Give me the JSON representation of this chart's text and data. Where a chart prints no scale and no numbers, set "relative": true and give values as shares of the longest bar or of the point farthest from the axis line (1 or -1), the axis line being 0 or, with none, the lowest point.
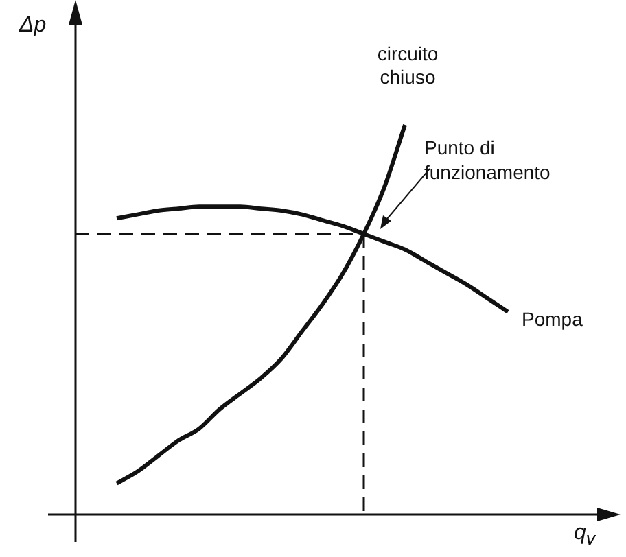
{
  "chart_data": {
    "type": "line",
    "relative": true,
    "xlabel": "q$_{v}$",
    "ylabel": "Δp",
    "legend": false,
    "marker": "none",
    "categories": [
      null,
      null,
      null,
      null,
      null,
      null,
      null,
      null,
      null,
      null,
      null,
      null,
      null,
      null,
      null,
      null,
      null,
      null,
      null,
      null,
      null,
      null,
      null,
      null,
      null,
      null
    ],
    "series": [
      {
        "name": "circuito chiuso",
        "color": "#111111",
        "values": [
          null,
          null,
          0.08,
          0.11,
          0.15,
          0.19,
          0.22,
          0.27,
          0.31,
          0.35,
          0.4,
          0.47,
          0.54,
          0.62,
          0.72,
          0.84,
          1,
          null,
          null,
          null,
          null,
          null,
          null,
          null,
          null,
          null
        ]
      },
      {
        "name": "Pompa",
        "color": "#111111",
        "values": [
          null,
          null,
          0.76,
          0.77,
          0.78,
          0.785,
          0.79,
          0.79,
          0.79,
          0.785,
          0.78,
          0.77,
          0.755,
          0.74,
          0.72,
          0.7,
          0.68,
          0.65,
          0.62,
          0.59,
          0.555,
          0.52,
          null,
          null,
          null,
          null
        ]
      }
    ],
    "ref_lines": [
      {
        "axis": "y",
        "value": 0.72,
        "line_style": "dashed",
        "color": "#111111"
      }
    ],
    "annotations": [
      "Punto di funzionamento"
    ]
  }
}
